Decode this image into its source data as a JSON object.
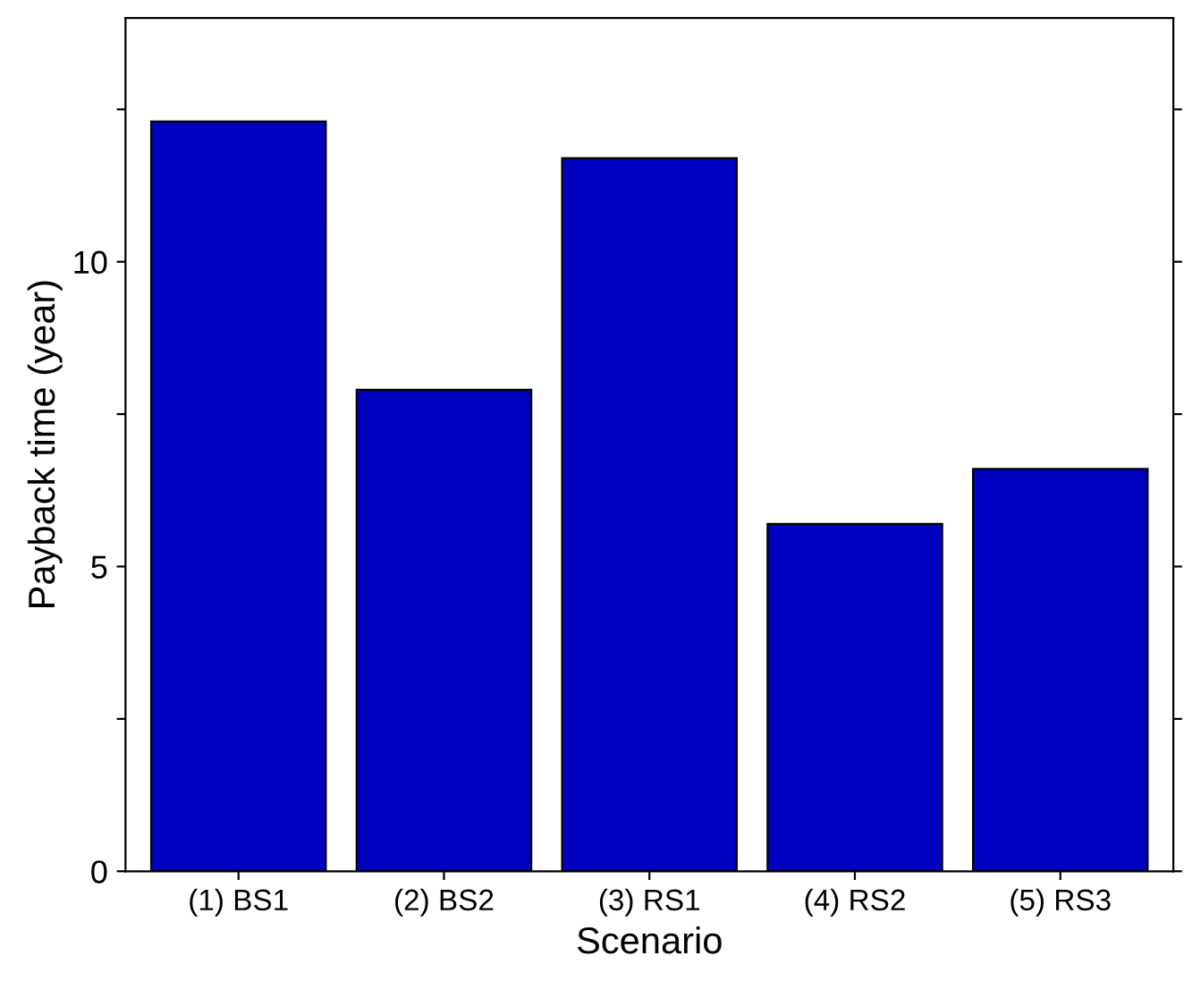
{
  "chart_data": {
    "type": "bar",
    "xlabel": "Scenario",
    "ylabel": "Payback time (year)",
    "categories": [
      "(1) BS1",
      "(2) BS2",
      "(3) RS1",
      "(4) RS2",
      "(5) RS3"
    ],
    "values": [
      12.3,
      7.9,
      11.7,
      5.7,
      6.6
    ],
    "color": "#0000c0",
    "ylim": [
      0,
      14
    ],
    "yticks": [
      0,
      {
        "value": 2.5,
        "label": null
      },
      5,
      {
        "value": 7.5,
        "label": null
      },
      10,
      {
        "value": 12.5,
        "label": null
      }
    ],
    "grid": false,
    "legend": false
  }
}
